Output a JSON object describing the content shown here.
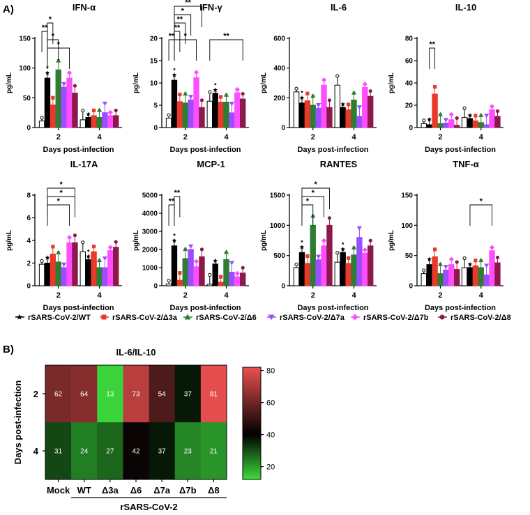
{
  "panel_a_label": "A)",
  "panel_b_label": "B)",
  "legend": [
    {
      "name": "rSARS-CoV-2/WT",
      "color": "#000000",
      "marker": "star"
    },
    {
      "name": "rSARS-CoV-2/Δ3a",
      "color": "#e8392b",
      "marker": "square"
    },
    {
      "name": "rSARS-CoV-2/Δ6",
      "color": "#2e7d32",
      "marker": "triangle"
    },
    {
      "name": "rSARS-CoV-2/Δ7a",
      "color": "#9c4dff",
      "marker": "triangle-down"
    },
    {
      "name": "rSARS-CoV-2/Δ7b",
      "color": "#ff4dff",
      "marker": "diamond"
    },
    {
      "name": "rSARS-CoV-2/Δ8",
      "color": "#8b1a4a",
      "marker": "circle"
    }
  ],
  "series_colors": [
    "#ffffff",
    "#000000",
    "#e8392b",
    "#2e7d32",
    "#9c4dff",
    "#ff4dff",
    "#8b1a4a"
  ],
  "chart_data": [
    {
      "type": "bar",
      "title": "IFN-α",
      "xlabel": "Days post-infection",
      "ylabel": "pg/mL",
      "categories": [
        "2",
        "4"
      ],
      "ylim": [
        0,
        150
      ],
      "yticks": [
        "0",
        "50",
        "100",
        "150"
      ],
      "groups": [
        "Mock",
        "WT",
        "Δ3a",
        "Δ6",
        "Δ7a",
        "Δ7b",
        "Δ8"
      ],
      "values": [
        [
          11,
          83,
          38,
          97,
          68,
          83,
          58
        ],
        [
          13,
          17,
          20,
          17,
          25,
          20,
          20
        ]
      ],
      "annotations": [
        "**",
        "*",
        "*",
        "*"
      ]
    },
    {
      "type": "bar",
      "title": "IFN-γ",
      "xlabel": "Days post-infection",
      "ylabel": "pg/mL",
      "categories": [
        "2",
        "4"
      ],
      "ylim": [
        0,
        20
      ],
      "yticks": [
        "0",
        "5",
        "10",
        "15",
        "20"
      ],
      "groups": [
        "Mock",
        "WT",
        "Δ3a",
        "Δ6",
        "Δ7a",
        "Δ7b",
        "Δ8"
      ],
      "values": [
        [
          2.1,
          10.6,
          5.8,
          5.5,
          6.2,
          11.2,
          4.5
        ],
        [
          5.9,
          7.7,
          5.7,
          5.7,
          3.3,
          7.8,
          6.4
        ]
      ],
      "annotations": [
        "**",
        "**",
        "**",
        "*",
        "*",
        "**",
        "**"
      ]
    },
    {
      "type": "bar",
      "title": "IL-6",
      "xlabel": "Days post-infection",
      "ylabel": "pg/mL",
      "categories": [
        "2",
        "4"
      ],
      "ylim": [
        0,
        600
      ],
      "yticks": [
        "0",
        "200",
        "400",
        "600"
      ],
      "groups": [
        "Mock",
        "WT",
        "Δ3a",
        "Δ6",
        "Δ7a",
        "Δ7b",
        "Δ8"
      ],
      "values": [
        [
          240,
          165,
          180,
          150,
          130,
          285,
          135
        ],
        [
          285,
          135,
          120,
          185,
          75,
          270,
          210
        ]
      ],
      "annotations": []
    },
    {
      "type": "bar",
      "title": "IL-10",
      "xlabel": "Days post-infection",
      "ylabel": "pg/mL",
      "categories": [
        "2",
        "4"
      ],
      "ylim": [
        0,
        80
      ],
      "yticks": [
        "0",
        "20",
        "40",
        "60",
        "80"
      ],
      "groups": [
        "Mock",
        "WT",
        "Δ3a",
        "Δ6",
        "Δ7a",
        "Δ7b",
        "Δ8"
      ],
      "values": [
        [
          3.5,
          2.5,
          30,
          3.5,
          4,
          7,
          2
        ],
        [
          9,
          8,
          6,
          4.5,
          2.5,
          16,
          10
        ]
      ],
      "annotations": [
        "**"
      ]
    },
    {
      "type": "bar",
      "title": "IL-17A",
      "xlabel": "Days post-infection",
      "ylabel": "pg/mL",
      "categories": [
        "2",
        "4"
      ],
      "ylim": [
        0,
        8
      ],
      "yticks": [
        "0",
        "2",
        "4",
        "6",
        "8"
      ],
      "groups": [
        "Mock",
        "WT",
        "Δ3a",
        "Δ6",
        "Δ7a",
        "Δ7b",
        "Δ8"
      ],
      "values": [
        [
          1.9,
          2.0,
          2.8,
          2.1,
          1.6,
          3.8,
          3.8
        ],
        [
          3.0,
          2.3,
          3.0,
          1.6,
          1.6,
          3.1,
          3.4
        ]
      ],
      "annotations": [
        "*",
        "*",
        "*"
      ]
    },
    {
      "type": "bar",
      "title": "MCP-1",
      "xlabel": "Days post-infection",
      "ylabel": "pg/mL",
      "categories": [
        "2",
        "4"
      ],
      "ylim": [
        0,
        5000
      ],
      "yticks": [
        "0",
        "1000",
        "2000",
        "3000",
        "4000",
        "5000"
      ],
      "groups": [
        "Mock",
        "WT",
        "Δ3a",
        "Δ6",
        "Δ7a",
        "Δ7b",
        "Δ8"
      ],
      "values": [
        [
          100,
          2200,
          300,
          1500,
          2000,
          1050,
          1600
        ],
        [
          80,
          1200,
          200,
          1450,
          750,
          500,
          700
        ]
      ],
      "annotations": [
        "**",
        "**"
      ]
    },
    {
      "type": "bar",
      "title": "RANTES",
      "xlabel": "Days post-infection",
      "ylabel": "pg/mL",
      "categories": [
        "2",
        "4"
      ],
      "ylim": [
        0,
        1500
      ],
      "yticks": [
        "0",
        "500",
        "1000",
        "1500"
      ],
      "groups": [
        "Mock",
        "WT",
        "Δ3a",
        "Δ6",
        "Δ7a",
        "Δ7b",
        "Δ8"
      ],
      "values": [
        [
          300,
          550,
          370,
          1000,
          430,
          660,
          1000
        ],
        [
          390,
          550,
          370,
          510,
          800,
          540,
          660
        ]
      ],
      "annotations": [
        "*",
        "*",
        "*"
      ]
    },
    {
      "type": "bar",
      "title": "TNF-α",
      "xlabel": "Days post-infection",
      "ylabel": "pg/mL",
      "categories": [
        "2",
        "4"
      ],
      "ylim": [
        0,
        150
      ],
      "yticks": [
        "0",
        "50",
        "100",
        "150"
      ],
      "groups": [
        "Mock",
        "WT",
        "Δ3a",
        "Δ6",
        "Δ7a",
        "Δ7b",
        "Δ8"
      ],
      "values": [
        [
          20,
          35,
          48,
          20,
          26,
          35,
          27
        ],
        [
          30,
          30,
          33,
          30,
          18,
          58,
          38
        ]
      ],
      "annotations": [
        "*"
      ]
    },
    {
      "type": "heatmap",
      "title": "IL-6/IL-10",
      "ylabel": "Days post-infection",
      "xlabel": "rSARS-CoV-2",
      "categories": [
        "Mock",
        "WT",
        "Δ3a",
        "Δ6",
        "Δ7a",
        "Δ7b",
        "Δ8"
      ],
      "rows": [
        "2",
        "4"
      ],
      "values": [
        [
          62,
          64,
          13,
          73,
          54,
          37,
          81
        ],
        [
          31,
          24,
          27,
          42,
          37,
          23,
          21
        ]
      ],
      "colorbar_ticks": [
        "20",
        "40",
        "60",
        "80"
      ],
      "colorbar_range": [
        12,
        82
      ]
    }
  ]
}
